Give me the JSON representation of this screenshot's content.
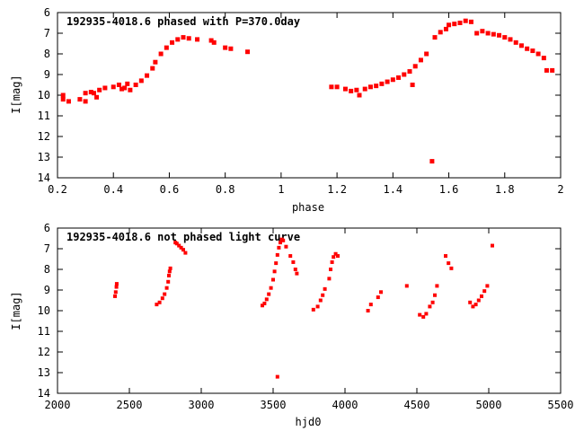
{
  "chart_data": [
    {
      "type": "scatter",
      "title": "192935-4018.6 phased with P=370.0day",
      "xlabel": "phase",
      "ylabel": "I[mag]",
      "xlim": [
        0.2,
        2.0
      ],
      "ylim": [
        6,
        14
      ],
      "y_inverted": true,
      "xticks": [
        "0.2",
        "0.4",
        "0.6",
        "0.8",
        "1",
        "1.2",
        "1.4",
        "1.6",
        "1.8",
        "2"
      ],
      "xtick_values": [
        0.2,
        0.4,
        0.6,
        0.8,
        1.0,
        1.2,
        1.4,
        1.6,
        1.8,
        2.0
      ],
      "yticks": [
        "6",
        "7",
        "8",
        "9",
        "10",
        "11",
        "12",
        "13",
        "14"
      ],
      "ytick_values": [
        6,
        7,
        8,
        9,
        10,
        11,
        12,
        13,
        14
      ],
      "color": "#ff0000",
      "points": [
        [
          0.22,
          10.0
        ],
        [
          0.22,
          10.2
        ],
        [
          0.24,
          10.3
        ],
        [
          0.28,
          10.2
        ],
        [
          0.3,
          10.3
        ],
        [
          0.3,
          9.9
        ],
        [
          0.32,
          9.85
        ],
        [
          0.33,
          9.9
        ],
        [
          0.34,
          10.1
        ],
        [
          0.35,
          9.75
        ],
        [
          0.37,
          9.65
        ],
        [
          0.4,
          9.6
        ],
        [
          0.42,
          9.5
        ],
        [
          0.43,
          9.7
        ],
        [
          0.44,
          9.65
        ],
        [
          0.45,
          9.45
        ],
        [
          0.46,
          9.75
        ],
        [
          0.48,
          9.5
        ],
        [
          0.5,
          9.3
        ],
        [
          0.52,
          9.05
        ],
        [
          0.54,
          8.7
        ],
        [
          0.55,
          8.4
        ],
        [
          0.57,
          8.0
        ],
        [
          0.59,
          7.7
        ],
        [
          0.61,
          7.45
        ],
        [
          0.63,
          7.3
        ],
        [
          0.65,
          7.2
        ],
        [
          0.67,
          7.25
        ],
        [
          0.7,
          7.3
        ],
        [
          0.75,
          7.35
        ],
        [
          0.76,
          7.45
        ],
        [
          0.8,
          7.7
        ],
        [
          0.82,
          7.75
        ],
        [
          0.88,
          7.9
        ],
        [
          1.18,
          9.6
        ],
        [
          1.2,
          9.6
        ],
        [
          1.23,
          9.7
        ],
        [
          1.25,
          9.8
        ],
        [
          1.27,
          9.75
        ],
        [
          1.28,
          10.0
        ],
        [
          1.3,
          9.7
        ],
        [
          1.32,
          9.6
        ],
        [
          1.34,
          9.55
        ],
        [
          1.36,
          9.45
        ],
        [
          1.38,
          9.35
        ],
        [
          1.4,
          9.25
        ],
        [
          1.42,
          9.15
        ],
        [
          1.44,
          9.0
        ],
        [
          1.46,
          8.85
        ],
        [
          1.47,
          9.5
        ],
        [
          1.48,
          8.6
        ],
        [
          1.5,
          8.3
        ],
        [
          1.52,
          8.0
        ],
        [
          1.54,
          13.2
        ],
        [
          1.55,
          7.2
        ],
        [
          1.57,
          6.95
        ],
        [
          1.59,
          6.8
        ],
        [
          1.6,
          6.6
        ],
        [
          1.62,
          6.55
        ],
        [
          1.64,
          6.5
        ],
        [
          1.66,
          6.4
        ],
        [
          1.68,
          6.45
        ],
        [
          1.7,
          7.0
        ],
        [
          1.72,
          6.9
        ],
        [
          1.74,
          7.0
        ],
        [
          1.76,
          7.05
        ],
        [
          1.78,
          7.1
        ],
        [
          1.8,
          7.2
        ],
        [
          1.82,
          7.3
        ],
        [
          1.84,
          7.45
        ],
        [
          1.86,
          7.6
        ],
        [
          1.88,
          7.75
        ],
        [
          1.9,
          7.85
        ],
        [
          1.92,
          8.0
        ],
        [
          1.94,
          8.2
        ],
        [
          1.95,
          8.8
        ],
        [
          1.97,
          8.8
        ]
      ]
    },
    {
      "type": "scatter",
      "title": "192935-4018.6 not phased light curve",
      "xlabel": "hjd0",
      "ylabel": "I[mag]",
      "xlim": [
        2000,
        5500
      ],
      "ylim": [
        6,
        14
      ],
      "y_inverted": true,
      "xticks": [
        "2000",
        "2500",
        "3000",
        "3500",
        "4000",
        "4500",
        "5000",
        "5500"
      ],
      "xtick_values": [
        2000,
        2500,
        3000,
        3500,
        4000,
        4500,
        5000,
        5500
      ],
      "yticks": [
        "6",
        "7",
        "8",
        "9",
        "10",
        "11",
        "12",
        "13",
        "14"
      ],
      "ytick_values": [
        6,
        7,
        8,
        9,
        10,
        11,
        12,
        13,
        14
      ],
      "color": "#ff0000",
      "points": [
        [
          2400,
          9.3
        ],
        [
          2405,
          9.1
        ],
        [
          2410,
          8.85
        ],
        [
          2412,
          8.7
        ],
        [
          2690,
          9.7
        ],
        [
          2710,
          9.6
        ],
        [
          2730,
          9.4
        ],
        [
          2745,
          9.2
        ],
        [
          2760,
          8.9
        ],
        [
          2770,
          8.6
        ],
        [
          2775,
          8.3
        ],
        [
          2780,
          8.1
        ],
        [
          2785,
          7.95
        ],
        [
          2820,
          6.7
        ],
        [
          2830,
          6.75
        ],
        [
          2845,
          6.85
        ],
        [
          2860,
          6.95
        ],
        [
          2875,
          7.05
        ],
        [
          2890,
          7.2
        ],
        [
          3425,
          9.75
        ],
        [
          3440,
          9.65
        ],
        [
          3455,
          9.45
        ],
        [
          3470,
          9.2
        ],
        [
          3485,
          8.9
        ],
        [
          3500,
          8.5
        ],
        [
          3510,
          8.1
        ],
        [
          3520,
          7.7
        ],
        [
          3530,
          7.3
        ],
        [
          3540,
          6.95
        ],
        [
          3550,
          6.7
        ],
        [
          3560,
          6.55
        ],
        [
          3570,
          6.6
        ],
        [
          3590,
          6.9
        ],
        [
          3530,
          13.2
        ],
        [
          3620,
          7.35
        ],
        [
          3640,
          7.65
        ],
        [
          3655,
          8.0
        ],
        [
          3665,
          8.2
        ],
        [
          3780,
          9.95
        ],
        [
          3810,
          9.8
        ],
        [
          3830,
          9.5
        ],
        [
          3845,
          9.25
        ],
        [
          3860,
          8.95
        ],
        [
          3890,
          8.45
        ],
        [
          3900,
          8.0
        ],
        [
          3910,
          7.65
        ],
        [
          3920,
          7.4
        ],
        [
          3935,
          7.25
        ],
        [
          3950,
          7.35
        ],
        [
          4160,
          10.0
        ],
        [
          4180,
          9.7
        ],
        [
          4230,
          9.35
        ],
        [
          4250,
          9.1
        ],
        [
          4430,
          8.8
        ],
        [
          4520,
          10.2
        ],
        [
          4545,
          10.3
        ],
        [
          4565,
          10.15
        ],
        [
          4590,
          9.8
        ],
        [
          4610,
          9.6
        ],
        [
          4625,
          9.25
        ],
        [
          4640,
          8.8
        ],
        [
          4700,
          7.35
        ],
        [
          4720,
          7.7
        ],
        [
          4740,
          7.95
        ],
        [
          4870,
          9.6
        ],
        [
          4890,
          9.8
        ],
        [
          4910,
          9.7
        ],
        [
          4930,
          9.5
        ],
        [
          4950,
          9.3
        ],
        [
          4970,
          9.05
        ],
        [
          4990,
          8.8
        ],
        [
          5025,
          6.85
        ]
      ]
    }
  ]
}
